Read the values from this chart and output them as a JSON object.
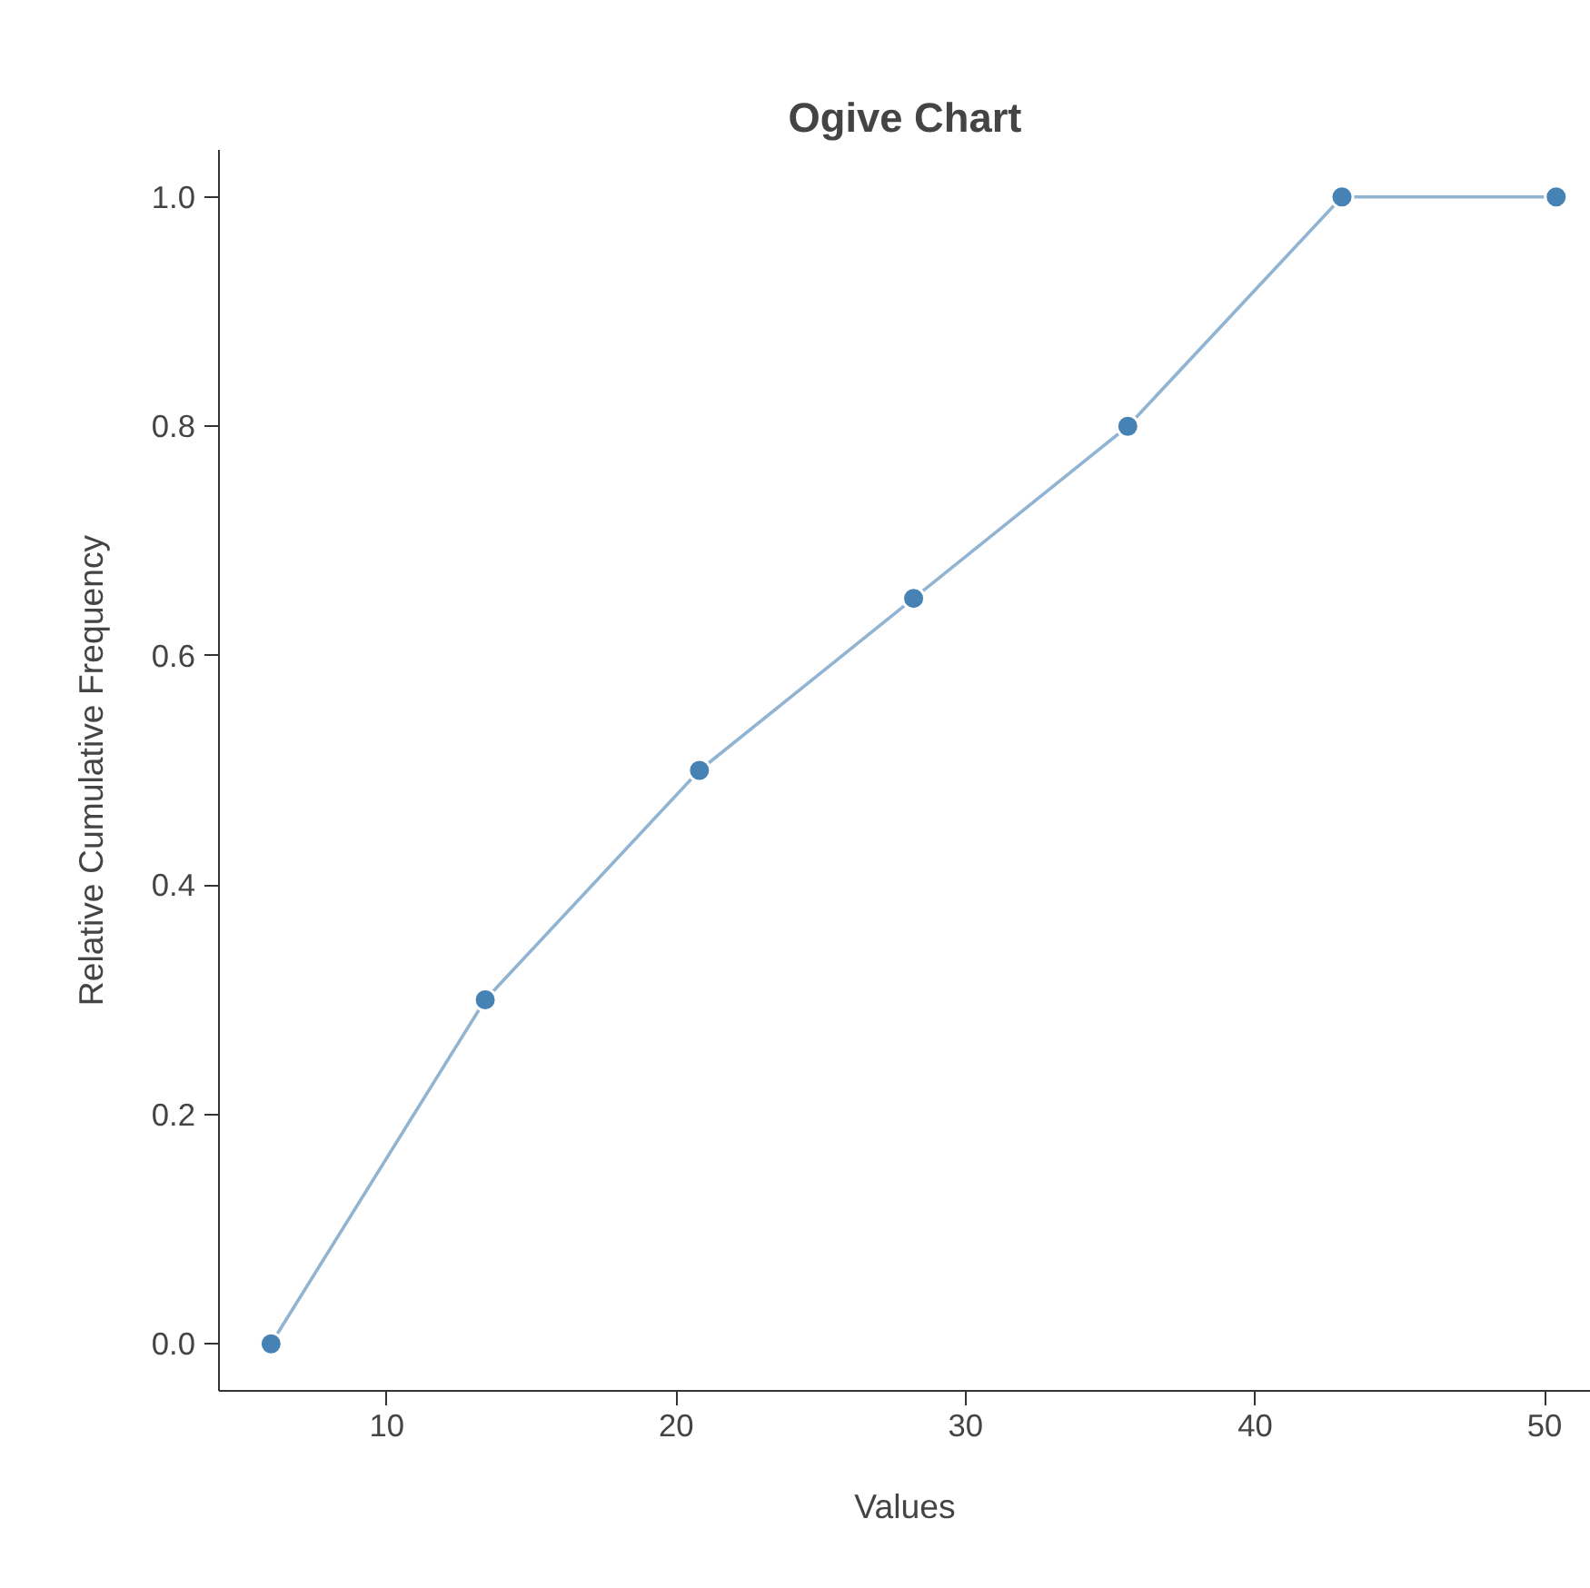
{
  "chart_data": {
    "type": "line",
    "title": "Ogive Chart",
    "xlabel": "Values",
    "ylabel": "Relative Cumulative Frequency",
    "x": [
      6.0,
      13.4,
      20.8,
      28.2,
      35.6,
      43.0,
      50.4
    ],
    "series": [
      {
        "color": "#4682b4",
        "values": [
          0,
          0.3,
          0.5,
          0.65,
          0.8,
          1.0,
          1.0
        ]
      }
    ],
    "xlim": [
      4.2,
      51.6
    ],
    "ylim": [
      -0.041,
      1.041
    ],
    "xticks": [
      10,
      20,
      30,
      40,
      50
    ],
    "yticks": [
      {
        "value": 0,
        "label": "0.0"
      },
      {
        "value": 0.2,
        "label": "0.2"
      },
      {
        "value": 0.4,
        "label": "0.4"
      },
      {
        "value": 0.6,
        "label": "0.6"
      },
      {
        "value": 0.8,
        "label": "0.8"
      },
      {
        "value": 1.0,
        "label": "1.0"
      }
    ],
    "grid": false,
    "marker": "circle",
    "line_style": "solid"
  }
}
